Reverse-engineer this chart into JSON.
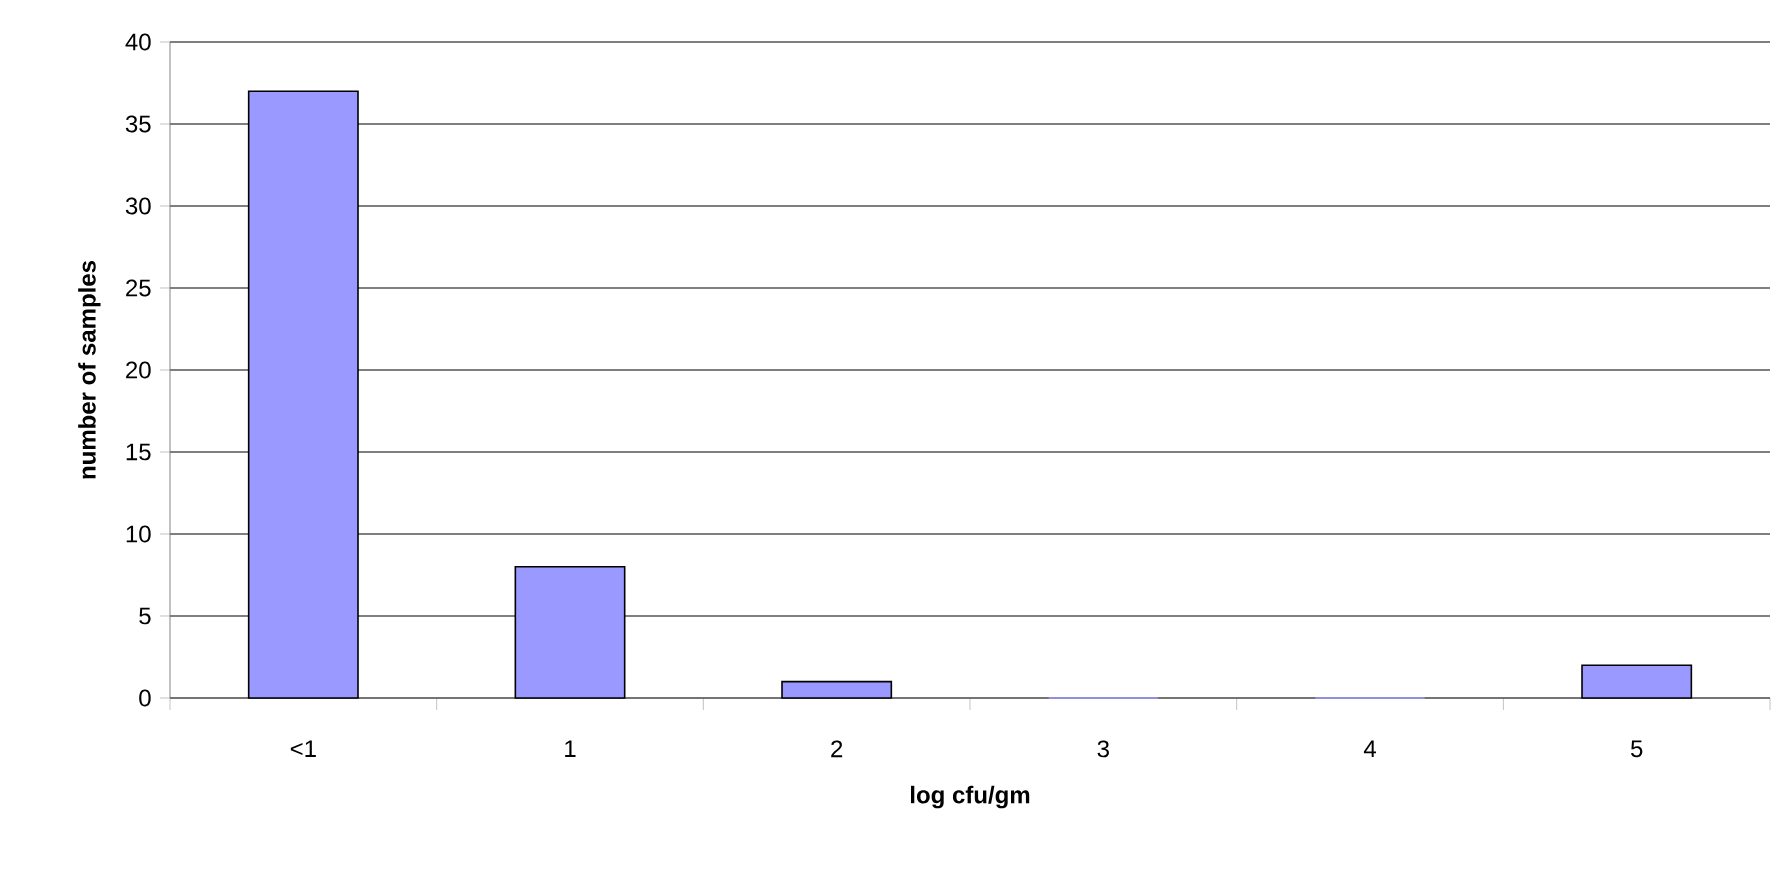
{
  "chart_data": {
    "type": "bar",
    "xlabel": "log cfu/gm",
    "ylabel": "number of samples",
    "categories": [
      "<1",
      "1",
      "2",
      "3",
      "4",
      "5"
    ],
    "values": [
      37,
      8,
      1,
      0,
      0,
      2
    ],
    "color": "#9999ff",
    "ylim": [
      0,
      40
    ],
    "yticks": [
      0,
      5,
      10,
      15,
      20,
      25,
      30,
      35,
      40
    ],
    "grid": "y"
  }
}
